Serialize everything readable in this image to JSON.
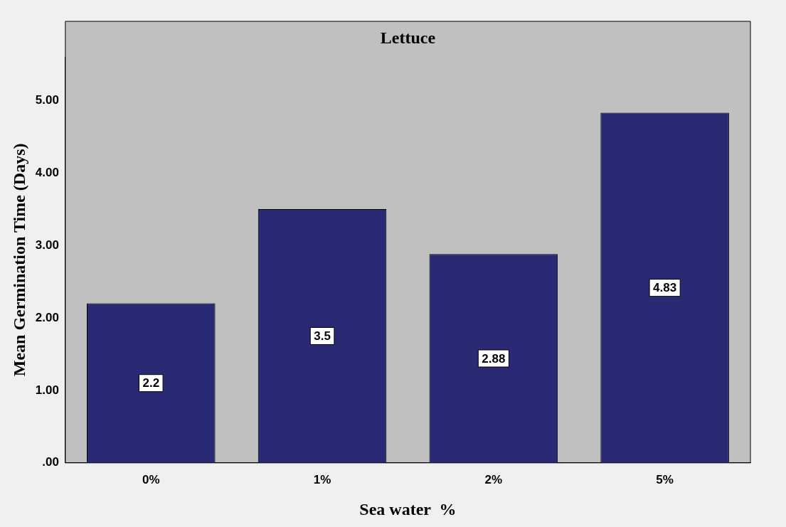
{
  "chart_data": {
    "type": "bar",
    "title": "Lettuce",
    "xlabel": "Sea water  %",
    "ylabel": "Mean Germination Time (Days)",
    "categories": [
      "0%",
      "1%",
      "2%",
      "5%"
    ],
    "values": [
      2.2,
      3.5,
      2.88,
      4.83
    ],
    "color": "#292a73",
    "ylim": [
      0,
      5.6
    ],
    "yticks": [
      {
        "value": 0,
        "label": ".00"
      },
      {
        "value": 1,
        "label": "1.00"
      },
      {
        "value": 2,
        "label": "2.00"
      },
      {
        "value": 3,
        "label": "3.00"
      },
      {
        "value": 4,
        "label": "4.00"
      },
      {
        "value": 5,
        "label": "5.00"
      }
    ],
    "data_labels": true,
    "grid": false,
    "legend": false
  }
}
